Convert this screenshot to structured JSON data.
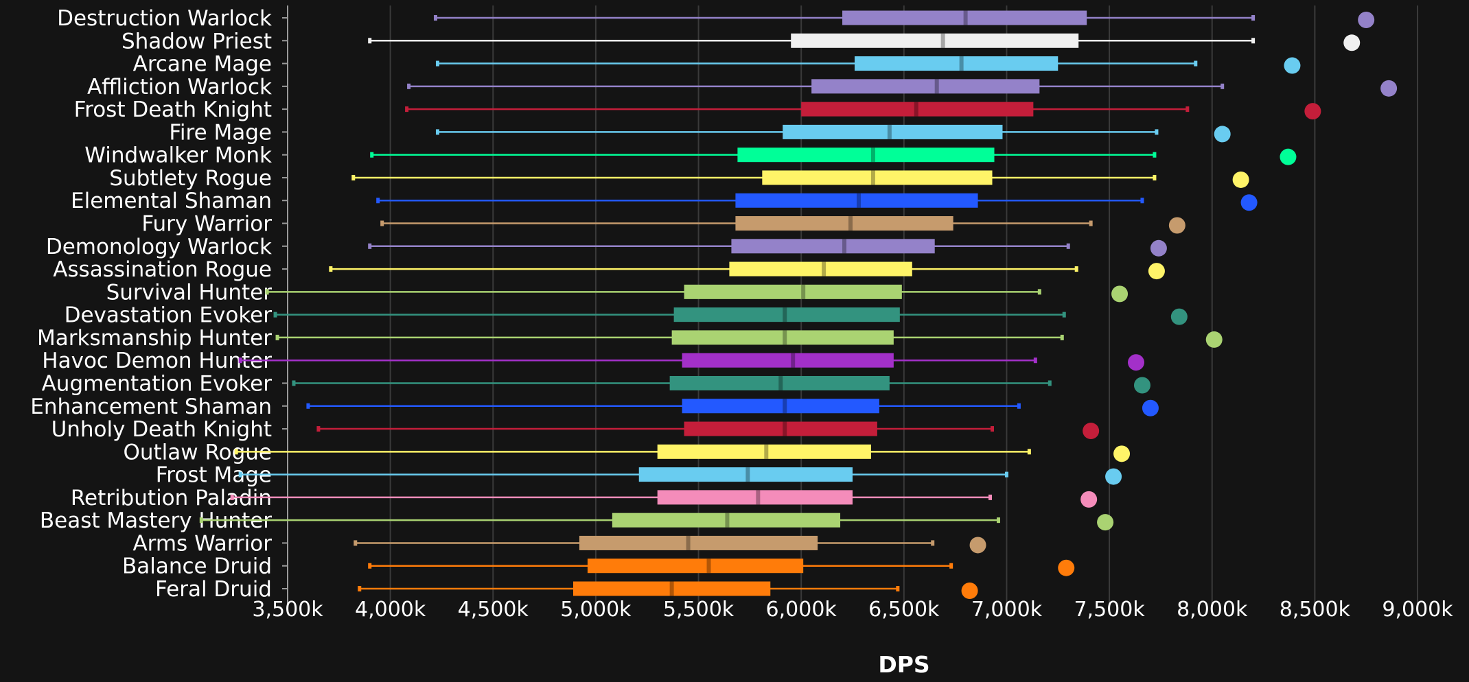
{
  "chart_data": {
    "type": "boxplot",
    "title": "",
    "xlabel": "DPS",
    "ylabel": "",
    "xlim": [
      3500,
      9000
    ],
    "x_ticks": [
      3500,
      4000,
      4500,
      5000,
      5500,
      6000,
      6500,
      7000,
      7500,
      8000,
      8500,
      9000
    ],
    "x_tick_labels": [
      "3,500k",
      "4,000k",
      "4,500k",
      "5,000k",
      "5,500k",
      "6,000k",
      "6,500k",
      "7,000k",
      "7,500k",
      "8,000k",
      "8,500k",
      "9,000k"
    ],
    "grid": true,
    "units": "thousands of DPS (k)",
    "series": [
      {
        "name": "Destruction Warlock",
        "color": "#9482c9",
        "min": 4220,
        "q1": 6200,
        "median": 6800,
        "q3": 7390,
        "max": 8200,
        "max_point": 8750
      },
      {
        "name": "Shadow Priest",
        "color": "#f0f0f0",
        "min": 3900,
        "q1": 5950,
        "median": 6690,
        "q3": 7350,
        "max": 8200,
        "max_point": 8680
      },
      {
        "name": "Arcane Mage",
        "color": "#69ccf0",
        "min": 4230,
        "q1": 6260,
        "median": 6780,
        "q3": 7250,
        "max": 7920,
        "max_point": 8390
      },
      {
        "name": "Affliction Warlock",
        "color": "#9482c9",
        "min": 4090,
        "q1": 6050,
        "median": 6660,
        "q3": 7160,
        "max": 8050,
        "max_point": 8860
      },
      {
        "name": "Frost Death Knight",
        "color": "#c41e3a",
        "min": 4080,
        "q1": 6000,
        "median": 6560,
        "q3": 7130,
        "max": 7880,
        "max_point": 8490
      },
      {
        "name": "Fire Mage",
        "color": "#69ccf0",
        "min": 4230,
        "q1": 5910,
        "median": 6430,
        "q3": 6980,
        "max": 7730,
        "max_point": 8050
      },
      {
        "name": "Windwalker Monk",
        "color": "#00ff98",
        "min": 3910,
        "q1": 5690,
        "median": 6350,
        "q3": 6940,
        "max": 7720,
        "max_point": 8370
      },
      {
        "name": "Subtlety Rogue",
        "color": "#fff468",
        "min": 3820,
        "q1": 5810,
        "median": 6350,
        "q3": 6930,
        "max": 7720,
        "max_point": 8140
      },
      {
        "name": "Elemental Shaman",
        "color": "#2359ff",
        "min": 3940,
        "q1": 5680,
        "median": 6280,
        "q3": 6860,
        "max": 7660,
        "max_point": 8180
      },
      {
        "name": "Fury Warrior",
        "color": "#c69b6d",
        "min": 3960,
        "q1": 5680,
        "median": 6240,
        "q3": 6740,
        "max": 7410,
        "max_point": 7830
      },
      {
        "name": "Demonology Warlock",
        "color": "#9482c9",
        "min": 3900,
        "q1": 5660,
        "median": 6210,
        "q3": 6650,
        "max": 7300,
        "max_point": 7740
      },
      {
        "name": "Assassination Rogue",
        "color": "#fff468",
        "min": 3710,
        "q1": 5650,
        "median": 6110,
        "q3": 6540,
        "max": 7340,
        "max_point": 7730
      },
      {
        "name": "Survival Hunter",
        "color": "#aad372",
        "min": 3400,
        "q1": 5430,
        "median": 6010,
        "q3": 6490,
        "max": 7160,
        "max_point": 7550
      },
      {
        "name": "Devastation Evoker",
        "color": "#33937f",
        "min": 3440,
        "q1": 5380,
        "median": 5920,
        "q3": 6480,
        "max": 7280,
        "max_point": 7840
      },
      {
        "name": "Marksmanship Hunter",
        "color": "#aad372",
        "min": 3450,
        "q1": 5370,
        "median": 5920,
        "q3": 6450,
        "max": 7270,
        "max_point": 8010
      },
      {
        "name": "Havoc Demon Hunter",
        "color": "#a330c9",
        "min": 3270,
        "q1": 5420,
        "median": 5960,
        "q3": 6450,
        "max": 7140,
        "max_point": 7630
      },
      {
        "name": "Augmentation Evoker",
        "color": "#33937f",
        "min": 3530,
        "q1": 5360,
        "median": 5900,
        "q3": 6430,
        "max": 7210,
        "max_point": 7660
      },
      {
        "name": "Enhancement Shaman",
        "color": "#2359ff",
        "min": 3600,
        "q1": 5420,
        "median": 5920,
        "q3": 6380,
        "max": 7060,
        "max_point": 7700
      },
      {
        "name": "Unholy Death Knight",
        "color": "#c41e3a",
        "min": 3650,
        "q1": 5430,
        "median": 5920,
        "q3": 6370,
        "max": 6930,
        "max_point": 7410
      },
      {
        "name": "Outlaw Rogue",
        "color": "#fff468",
        "min": 3250,
        "q1": 5300,
        "median": 5830,
        "q3": 6340,
        "max": 7110,
        "max_point": 7560
      },
      {
        "name": "Frost Mage",
        "color": "#69ccf0",
        "min": 3270,
        "q1": 5210,
        "median": 5740,
        "q3": 6250,
        "max": 7000,
        "max_point": 7520
      },
      {
        "name": "Retribution Paladin",
        "color": "#f48cba",
        "min": 3230,
        "q1": 5300,
        "median": 5790,
        "q3": 6250,
        "max": 6920,
        "max_point": 7400
      },
      {
        "name": "Beast Mastery Hunter",
        "color": "#aad372",
        "min": 3080,
        "q1": 5080,
        "median": 5640,
        "q3": 6190,
        "max": 6960,
        "max_point": 7480
      },
      {
        "name": "Arms Warrior",
        "color": "#c69b6d",
        "min": 3830,
        "q1": 4920,
        "median": 5450,
        "q3": 6080,
        "max": 6640,
        "max_point": 6860
      },
      {
        "name": "Balance Druid",
        "color": "#ff7c0a",
        "min": 3900,
        "q1": 4960,
        "median": 5550,
        "q3": 6010,
        "max": 6730,
        "max_point": 7290
      },
      {
        "name": "Feral Druid",
        "color": "#ff7c0a",
        "min": 3850,
        "q1": 4890,
        "median": 5370,
        "q3": 5850,
        "max": 6470,
        "max_point": 6820
      }
    ]
  }
}
